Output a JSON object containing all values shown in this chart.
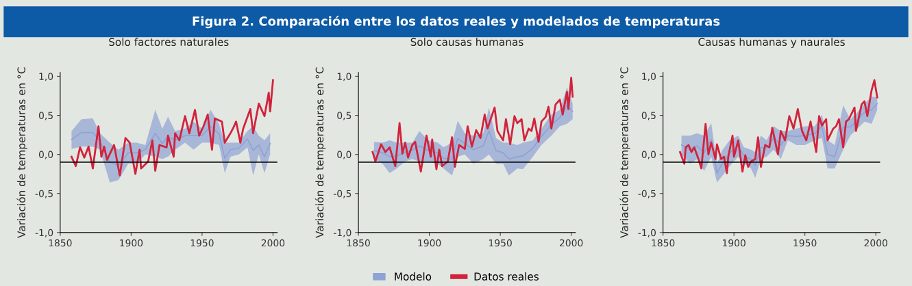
{
  "chart_data": [
    {
      "type": "line",
      "title": "Solo factores naturales",
      "ylabel": "Variación de temperaturas en °C",
      "annotations": [
        "Figura 2. Comparación entre los datos reales y modelados de temperaturas"
      ],
      "xlim": [
        1850,
        2003
      ],
      "xticks": [
        1850,
        1900,
        1950,
        2000
      ],
      "ylim": [
        -1.0,
        1.05
      ],
      "yticks": [
        {
          "value": 1.0,
          "label": "1,0"
        },
        {
          "value": 0.5,
          "label": "0,5"
        },
        {
          "value": 0.0,
          "label": "0,0"
        },
        {
          "value": -0.5,
          "label": "-0,5"
        },
        {
          "value": -1.0,
          "label": "-1,0"
        }
      ],
      "grid": false,
      "legend": false,
      "ref_lines": [
        {
          "axis": "y",
          "value": -0.1,
          "color": "#000000"
        }
      ],
      "series": [
        {
          "type": "line",
          "color": "#8ea2d4",
          "x": [
            1858,
            1865,
            1873,
            1878,
            1885,
            1891,
            1898,
            1904,
            1910,
            1917,
            1922,
            1926,
            1931,
            1938,
            1944,
            1950,
            1956,
            1962,
            1966,
            1970,
            1976,
            1982,
            1986,
            1990,
            1994,
            1998
          ],
          "values": [
            0.19,
            0.28,
            0.28,
            0.17,
            -0.1,
            -0.14,
            0.02,
            0.02,
            0.06,
            0.27,
            0.14,
            0.23,
            0.18,
            0.24,
            0.24,
            0.24,
            0.36,
            0.26,
            -0.05,
            0.06,
            0.08,
            0.2,
            0.05,
            0.12,
            -0.03,
            0.14
          ],
          "lower": [
            0.07,
            0.1,
            0.1,
            0.06,
            -0.36,
            -0.33,
            -0.12,
            -0.12,
            0.0,
            -0.03,
            -0.06,
            -0.03,
            0.06,
            0.15,
            0.06,
            0.15,
            0.15,
            0.12,
            -0.24,
            -0.03,
            0.0,
            0.09,
            -0.27,
            0.0,
            -0.24,
            0.0
          ],
          "upper": [
            0.3,
            0.45,
            0.46,
            0.27,
            0.15,
            0.06,
            0.15,
            0.15,
            0.12,
            0.57,
            0.33,
            0.48,
            0.3,
            0.33,
            0.42,
            0.33,
            0.57,
            0.39,
            0.15,
            0.15,
            0.15,
            0.3,
            0.36,
            0.24,
            0.18,
            0.27
          ]
        },
        {
          "color": "#d2233c",
          "x": [
            1858,
            1861,
            1864,
            1867,
            1870,
            1873,
            1877,
            1879,
            1881,
            1883,
            1888,
            1892,
            1896,
            1899,
            1903,
            1906,
            1907,
            1912,
            1915,
            1917,
            1920,
            1925,
            1926,
            1930,
            1931,
            1934,
            1938,
            1941,
            1945,
            1948,
            1951,
            1954,
            1957,
            1959,
            1964,
            1966,
            1970,
            1972,
            1974,
            1977,
            1979,
            1984,
            1986,
            1990,
            1994,
            1997,
            1998,
            2000
          ],
          "values": [
            -0.03,
            -0.15,
            0.09,
            -0.04,
            0.1,
            -0.18,
            0.36,
            -0.03,
            0.1,
            -0.07,
            0.12,
            -0.27,
            0.21,
            0.15,
            -0.25,
            0.06,
            -0.18,
            -0.09,
            0.18,
            -0.21,
            0.12,
            0.09,
            0.24,
            -0.03,
            0.27,
            0.18,
            0.49,
            0.27,
            0.57,
            0.24,
            0.36,
            0.51,
            0.06,
            0.46,
            0.42,
            0.15,
            0.27,
            0.34,
            0.42,
            0.15,
            0.33,
            0.58,
            0.27,
            0.65,
            0.49,
            0.79,
            0.55,
            0.95
          ]
        }
      ]
    },
    {
      "type": "line",
      "title": "Solo causas humanas",
      "ylabel": "Variación de temperaturas en °C",
      "xlim": [
        1850,
        2003
      ],
      "xticks": [
        1850,
        1900,
        1950,
        2000
      ],
      "ylim": [
        -1.0,
        1.05
      ],
      "yticks": [
        {
          "value": 1.0,
          "label": "1,0"
        },
        {
          "value": 0.5,
          "label": "0,5"
        },
        {
          "value": 0.0,
          "label": "0,0"
        },
        {
          "value": -0.5,
          "label": "-0,5"
        },
        {
          "value": -1.0,
          "label": "-1,0"
        }
      ],
      "grid": false,
      "legend": "bottom",
      "ref_lines": [
        {
          "axis": "y",
          "value": -0.1,
          "color": "#000000"
        }
      ],
      "series": [
        {
          "name": "Modelo",
          "type": "line",
          "color": "#8ea2d4",
          "x": [
            1861,
            1867,
            1872,
            1877,
            1883,
            1888,
            1893,
            1899,
            1906,
            1910,
            1916,
            1920,
            1925,
            1931,
            1938,
            1942,
            1947,
            1952,
            1956,
            1962,
            1966,
            1973,
            1979,
            1986,
            1992,
            1997,
            2001
          ],
          "values": [
            0.05,
            0.02,
            -0.03,
            -0.02,
            0.03,
            0.05,
            0.11,
            0.05,
            0.02,
            -0.05,
            -0.06,
            0.2,
            0.14,
            0.06,
            0.11,
            0.3,
            0.05,
            0.02,
            -0.06,
            -0.03,
            -0.02,
            0.08,
            0.23,
            0.38,
            0.47,
            0.63,
            0.55
          ],
          "lower": [
            -0.06,
            -0.12,
            -0.24,
            -0.18,
            -0.09,
            -0.06,
            -0.09,
            -0.09,
            -0.12,
            -0.18,
            -0.27,
            -0.03,
            0.0,
            -0.12,
            -0.06,
            0.0,
            -0.12,
            -0.12,
            -0.27,
            -0.18,
            -0.19,
            -0.03,
            0.12,
            0.24,
            0.36,
            0.39,
            0.45
          ],
          "upper": [
            0.16,
            0.15,
            0.18,
            0.15,
            0.15,
            0.15,
            0.3,
            0.18,
            0.15,
            0.09,
            0.15,
            0.43,
            0.27,
            0.24,
            0.27,
            0.6,
            0.21,
            0.15,
            0.15,
            0.12,
            0.15,
            0.18,
            0.33,
            0.51,
            0.57,
            0.86,
            0.65
          ]
        },
        {
          "name": "Datos reales",
          "color": "#d2233c",
          "x": [
            1860,
            1862,
            1866,
            1869,
            1872,
            1876,
            1879,
            1881,
            1883,
            1885,
            1888,
            1890,
            1894,
            1898,
            1901,
            1902,
            1905,
            1907,
            1909,
            1913,
            1916,
            1918,
            1921,
            1925,
            1927,
            1930,
            1933,
            1936,
            1939,
            1941,
            1946,
            1948,
            1952,
            1954,
            1957,
            1960,
            1962,
            1965,
            1967,
            1970,
            1972,
            1974,
            1977,
            1979,
            1982,
            1984,
            1986,
            1989,
            1992,
            1994,
            1997,
            1998,
            2000,
            2001
          ],
          "values": [
            0.03,
            -0.09,
            0.13,
            0.03,
            0.09,
            -0.15,
            0.4,
            0.01,
            0.15,
            -0.04,
            0.12,
            0.16,
            -0.22,
            0.24,
            -0.03,
            0.19,
            -0.19,
            0.06,
            -0.15,
            -0.09,
            0.22,
            -0.16,
            0.12,
            0.07,
            0.36,
            0.1,
            0.31,
            0.21,
            0.51,
            0.33,
            0.6,
            0.3,
            0.18,
            0.45,
            0.13,
            0.49,
            0.4,
            0.45,
            0.18,
            0.33,
            0.3,
            0.46,
            0.16,
            0.42,
            0.48,
            0.61,
            0.33,
            0.64,
            0.7,
            0.51,
            0.8,
            0.58,
            0.98,
            0.74
          ]
        }
      ]
    },
    {
      "type": "line",
      "title": "Causas humanas y naurales",
      "ylabel": "Variación de temperaturas en °C",
      "xlim": [
        1850,
        2003
      ],
      "xticks": [
        1850,
        1900,
        1950,
        2000
      ],
      "ylim": [
        -1.0,
        1.05
      ],
      "yticks": [
        {
          "value": 1.0,
          "label": "1,0"
        },
        {
          "value": 0.5,
          "label": "0,5"
        },
        {
          "value": 0.0,
          "label": "0,0"
        },
        {
          "value": -0.5,
          "label": "-0,5"
        },
        {
          "value": -1.0,
          "label": "-1,0"
        }
      ],
      "grid": false,
      "legend": false,
      "ref_lines": [
        {
          "axis": "y",
          "value": -0.1,
          "color": "#000000"
        }
      ],
      "series": [
        {
          "type": "line",
          "color": "#8ea2d4",
          "x": [
            1863,
            1869,
            1874,
            1879,
            1884,
            1888,
            1892,
            1897,
            1903,
            1907,
            1912,
            1915,
            1919,
            1923,
            1928,
            1933,
            1938,
            1944,
            1950,
            1957,
            1962,
            1966,
            1971,
            1977,
            1982,
            1987,
            1992,
            1997,
            2001
          ],
          "values": [
            0.12,
            0.06,
            0.11,
            0.02,
            0.19,
            -0.24,
            -0.11,
            0.02,
            0.11,
            -0.02,
            -0.06,
            -0.14,
            0.09,
            0.08,
            0.21,
            0.12,
            0.24,
            0.23,
            0.24,
            0.27,
            0.36,
            0.0,
            -0.03,
            0.35,
            0.35,
            0.44,
            0.54,
            0.57,
            0.65
          ],
          "lower": [
            0.0,
            -0.12,
            -0.06,
            -0.21,
            -0.03,
            -0.36,
            -0.27,
            -0.15,
            -0.03,
            -0.12,
            -0.18,
            -0.3,
            -0.06,
            -0.03,
            0.06,
            -0.06,
            0.18,
            0.12,
            0.12,
            0.18,
            0.21,
            -0.18,
            -0.18,
            0.06,
            0.24,
            0.33,
            0.42,
            0.39,
            0.57
          ],
          "upper": [
            0.24,
            0.24,
            0.27,
            0.24,
            0.4,
            -0.12,
            0.06,
            0.18,
            0.24,
            0.09,
            0.06,
            0.03,
            0.24,
            0.18,
            0.36,
            0.3,
            0.3,
            0.33,
            0.36,
            0.36,
            0.51,
            0.18,
            0.12,
            0.63,
            0.45,
            0.54,
            0.65,
            0.74,
            0.73
          ]
        },
        {
          "color": "#d2233c",
          "x": [
            1862,
            1865,
            1866,
            1868,
            1870,
            1872,
            1875,
            1877,
            1880,
            1882,
            1884,
            1887,
            1888,
            1891,
            1893,
            1895,
            1896,
            1899,
            1900,
            1903,
            1906,
            1908,
            1910,
            1912,
            1915,
            1917,
            1919,
            1922,
            1925,
            1927,
            1931,
            1933,
            1936,
            1939,
            1942,
            1945,
            1948,
            1951,
            1954,
            1958,
            1960,
            1962,
            1965,
            1966,
            1970,
            1972,
            1974,
            1977,
            1979,
            1981,
            1985,
            1986,
            1990,
            1992,
            1994,
            1997,
            1999,
            2001
          ],
          "values": [
            0.03,
            -0.12,
            0.09,
            0.12,
            0.03,
            0.09,
            -0.06,
            -0.18,
            0.39,
            0.0,
            0.15,
            -0.06,
            0.13,
            -0.06,
            -0.03,
            -0.24,
            -0.03,
            0.24,
            -0.03,
            0.18,
            -0.22,
            -0.01,
            -0.16,
            -0.09,
            -0.06,
            0.22,
            -0.16,
            0.12,
            0.09,
            0.34,
            0.0,
            0.3,
            0.18,
            0.49,
            0.33,
            0.58,
            0.3,
            0.18,
            0.42,
            0.03,
            0.49,
            0.37,
            0.45,
            0.18,
            0.33,
            0.36,
            0.45,
            0.09,
            0.42,
            0.45,
            0.6,
            0.3,
            0.64,
            0.68,
            0.49,
            0.82,
            0.95,
            0.73
          ]
        }
      ]
    }
  ]
}
